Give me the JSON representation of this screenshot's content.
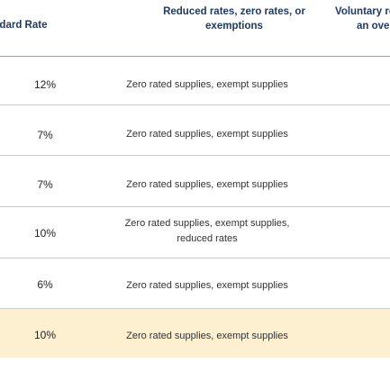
{
  "header": {
    "col1": "andard Rate",
    "col2": "Reduced rates, zero rates, or exemptions",
    "col3_line1": "Voluntary reg",
    "col3_line2": "an over"
  },
  "rows": [
    {
      "rate": "12%",
      "desc": "Zero rated supplies, exempt supplies"
    },
    {
      "rate": "7%",
      "desc": "Zero rated supplies, exempt supplies"
    },
    {
      "rate": "7%",
      "desc": "Zero rated supplies, exempt supplies"
    },
    {
      "rate": "10%",
      "desc_line1": "Zero rated supplies, exempt supplies,",
      "desc_line2": "reduced rates"
    },
    {
      "rate": "6%",
      "desc": "Zero rated supplies, exempt supplies"
    },
    {
      "rate": "10%",
      "desc": "Zero rated supplies, exempt supplies",
      "highlight": true
    }
  ],
  "colors": {
    "header_text": "#1f3a63",
    "highlight_row": "#fdf0d0",
    "divider": "#c9ccd1"
  }
}
